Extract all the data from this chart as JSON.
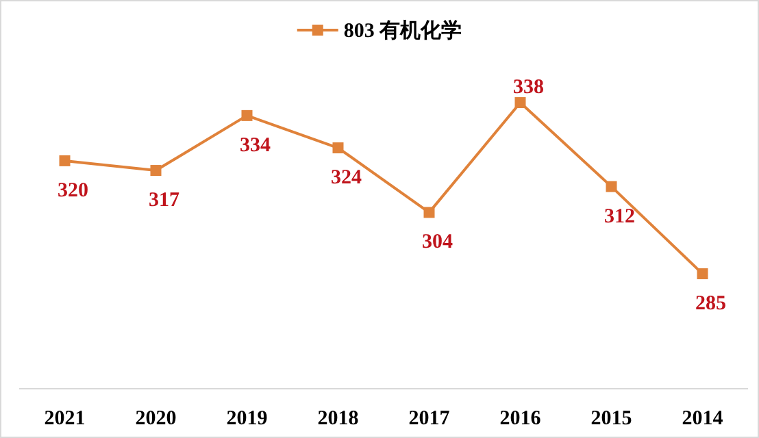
{
  "chart_data": {
    "type": "line",
    "categories": [
      "2021",
      "2020",
      "2019",
      "2018",
      "2017",
      "2016",
      "2015",
      "2014"
    ],
    "series": [
      {
        "name": "803 有机化学",
        "color": "#e0823a",
        "values": [
          320,
          317,
          334,
          324,
          304,
          338,
          312,
          285
        ]
      }
    ],
    "data_labels": true,
    "legend": "top",
    "marker": "square",
    "line_style": "solid",
    "tick_labels": "x"
  }
}
